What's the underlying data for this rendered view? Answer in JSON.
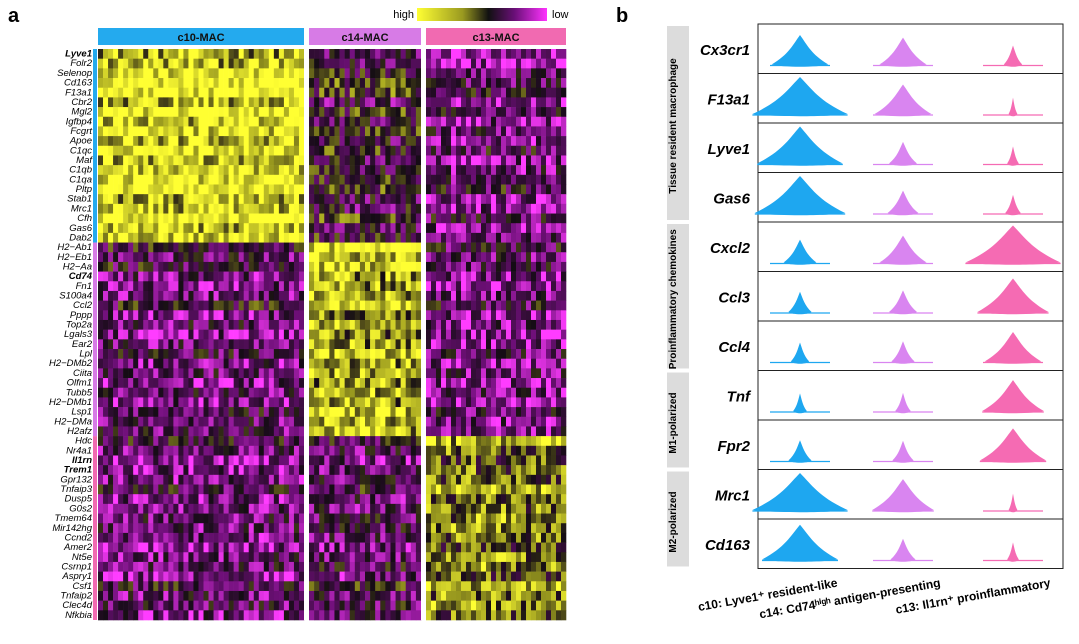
{
  "panel_a": {
    "label": "a",
    "legend": {
      "high": "high",
      "low": "low"
    },
    "clusters": [
      {
        "name": "c10-MAC",
        "color": "#24AAEE"
      },
      {
        "name": "c14-MAC",
        "color": "#D77BE6"
      },
      {
        "name": "c13-MAC",
        "color": "#F16AB1"
      }
    ],
    "gene_groups": [
      {
        "cluster": "c10-MAC",
        "genes": [
          "Lyve1",
          "Folr2",
          "Selenop",
          "Cd163",
          "F13a1",
          "Cbr2",
          "Mgl2",
          "Igfbp4",
          "Fcgrt",
          "Apoe",
          "C1qc",
          "Maf",
          "C1qb",
          "C1qa",
          "Pltp",
          "Stab1",
          "Mrc1",
          "Cfh",
          "Gas6",
          "Dab2"
        ]
      },
      {
        "cluster": "c14-MAC",
        "genes": [
          "H2−Ab1",
          "H2−Eb1",
          "H2−Aa",
          "Cd74",
          "Fn1",
          "S100a4",
          "Ccl2",
          "Pppp",
          "Top2a",
          "Lgals3",
          "Ear2",
          "Lpl",
          "H2−DMb2",
          "Ciita",
          "Olfm1",
          "Tubb5",
          "H2−DMb1",
          "Lsp1",
          "H2−DMa",
          "H2afz"
        ]
      },
      {
        "cluster": "c13-MAC",
        "genes": [
          "Hdc",
          "Nr4a1",
          "Il1rn",
          "Trem1",
          "Gpr132",
          "Tnfaip3",
          "Dusp5",
          "G0s2",
          "Tmem64",
          "Mir142hg",
          "Ccnd2",
          "Amer2",
          "Nt5e",
          "Csrnp1",
          "Aspry1",
          "Csf1",
          "Tnfaip2",
          "Clec4d",
          "Nfkbia"
        ]
      }
    ],
    "bold_genes": [
      "Lyve1",
      "Cd74",
      "Il1rn",
      "Trem1"
    ]
  },
  "panel_b": {
    "label": "b",
    "categories": [
      {
        "label": "Tissue resident macrophage",
        "genes": [
          "Cx3cr1",
          "F13a1",
          "Lyve1",
          "Gas6"
        ]
      },
      {
        "label": "Proinflammatory chemokines",
        "genes": [
          "Cxcl2",
          "Ccl3",
          "Ccl4"
        ]
      },
      {
        "label": "M1-polarized",
        "genes": [
          "Tnf",
          "Fpr2"
        ]
      },
      {
        "label": "M2-polarized",
        "genes": [
          "Mrc1",
          "Cd163"
        ]
      }
    ],
    "groups": [
      {
        "label": "c10: Lyve1⁺ resident-like",
        "color": "#1EA7F0"
      },
      {
        "label": "c14: Cd74ʰⁱᵍʰ antigen-presenting",
        "color": "#D985F0"
      },
      {
        "label": "c13: Il1rn⁺ proinflammatory",
        "color": "#F56BB3"
      }
    ],
    "violin_widths": {
      "Cx3cr1": [
        0.55,
        0.45,
        0.15
      ],
      "F13a1": [
        0.95,
        0.55,
        0.05
      ],
      "Lyve1": [
        0.85,
        0.25,
        0.08
      ],
      "Gas6": [
        0.9,
        0.28,
        0.12
      ],
      "Cxcl2": [
        0.3,
        0.45,
        0.95
      ],
      "Ccl3": [
        0.2,
        0.25,
        0.7
      ],
      "Ccl4": [
        0.15,
        0.2,
        0.55
      ],
      "Tnf": [
        0.1,
        0.12,
        0.6
      ],
      "Fpr2": [
        0.2,
        0.18,
        0.65
      ],
      "Mrc1": [
        0.95,
        0.6,
        0.05
      ],
      "Cd163": [
        0.75,
        0.22,
        0.08
      ]
    }
  }
}
